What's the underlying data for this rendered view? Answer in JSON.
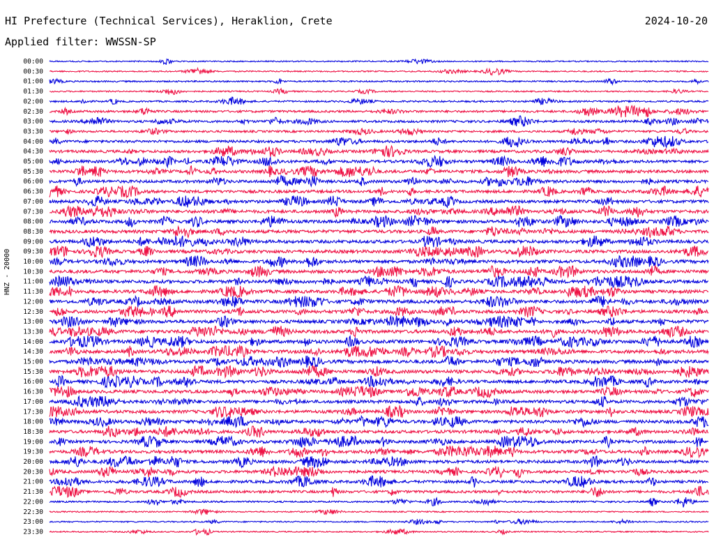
{
  "header": {
    "station": "HI Prefecture (Technical Services), Heraklion, Crete",
    "date": "2024-10-20",
    "filter_label": "Applied filter:",
    "filter": "WWSSN-SP",
    "channel": "HNZ - 20000"
  },
  "colors": {
    "trace_even": "#0000dd",
    "trace_odd": "#ee1144",
    "background": "#ffffff",
    "text": "#000000"
  },
  "chart_data": {
    "type": "line",
    "title": "HI Prefecture (Technical Services), Heraklion, Crete",
    "ylabel": "HNZ - 20000",
    "xlabel": "",
    "grid": false,
    "rows": [
      "00:00",
      "00:30",
      "01:00",
      "01:30",
      "02:00",
      "02:30",
      "03:00",
      "03:30",
      "04:00",
      "04:30",
      "05:00",
      "05:30",
      "06:00",
      "06:30",
      "07:00",
      "07:30",
      "08:00",
      "08:30",
      "09:00",
      "09:30",
      "10:00",
      "10:30",
      "11:00",
      "11:30",
      "12:00",
      "12:30",
      "13:00",
      "13:30",
      "14:00",
      "14:30",
      "15:00",
      "15:30",
      "16:00",
      "16:30",
      "17:00",
      "17:30",
      "18:00",
      "18:30",
      "19:00",
      "19:30",
      "20:00",
      "20:30",
      "21:00",
      "21:30",
      "22:00",
      "22:30",
      "23:00",
      "23:30"
    ],
    "row_activity": [
      0.35,
      0.45,
      0.7,
      0.5,
      0.9,
      1.6,
      1.7,
      1.4,
      2.0,
      2.2,
      2.2,
      2.6,
      2.4,
      2.4,
      2.6,
      2.7,
      2.8,
      2.8,
      2.8,
      2.8,
      2.8,
      2.9,
      2.9,
      2.9,
      3.0,
      2.9,
      3.0,
      3.0,
      3.0,
      3.0,
      3.0,
      3.0,
      2.9,
      2.8,
      2.7,
      2.8,
      2.7,
      2.6,
      2.6,
      2.6,
      2.6,
      2.4,
      2.2,
      2.0,
      0.9,
      0.35,
      0.4,
      0.3
    ],
    "series_colors": [
      "blue",
      "red"
    ]
  }
}
